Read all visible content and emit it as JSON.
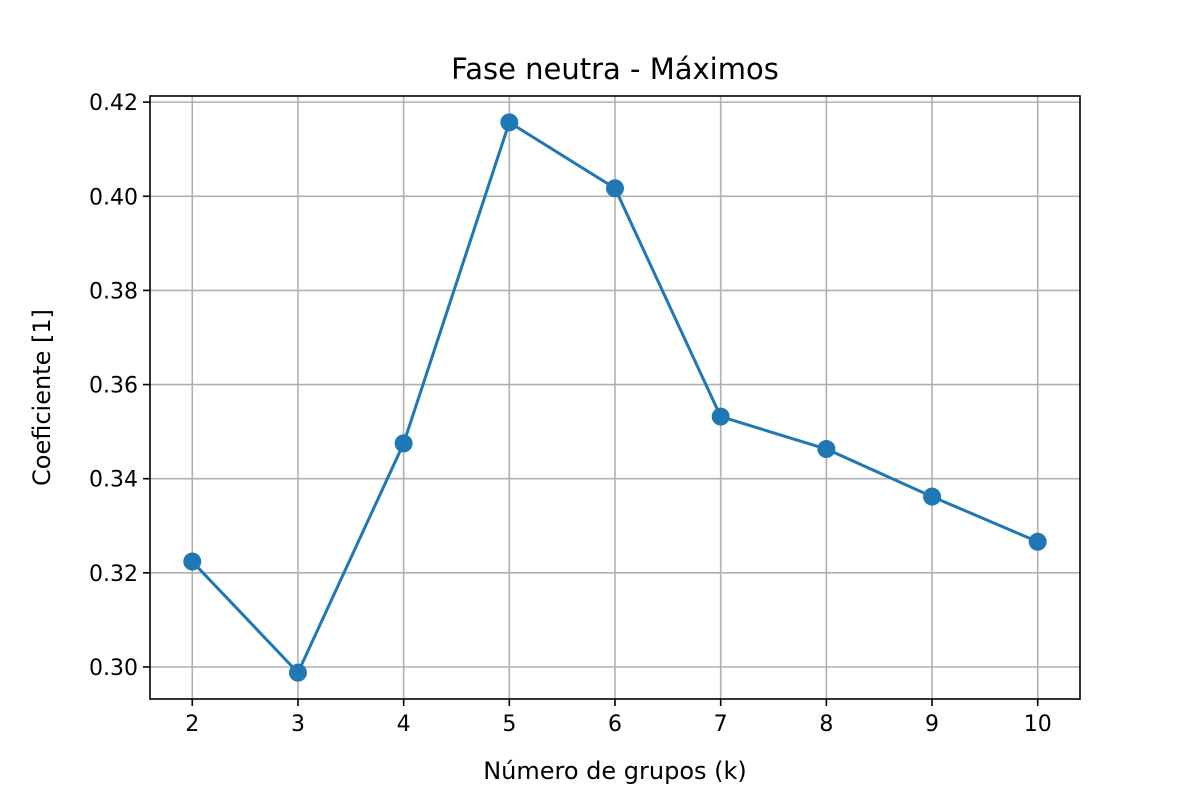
{
  "chart_data": {
    "type": "line",
    "title": "Fase neutra - Máximos",
    "xlabel": "Número de grupos (k)",
    "ylabel": "Coeficiente [1]",
    "x": [
      2,
      3,
      4,
      5,
      6,
      7,
      8,
      9,
      10
    ],
    "series": [
      {
        "values": [
          0.3224,
          0.2988,
          0.3475,
          0.4157,
          0.4017,
          0.3532,
          0.3463,
          0.3362,
          0.3266
        ],
        "color": "#1f77b4",
        "marker": "circle"
      }
    ],
    "xticks": [
      2,
      3,
      4,
      5,
      6,
      7,
      8,
      9,
      10
    ],
    "xtick_labels": [
      "2",
      "3",
      "4",
      "5",
      "6",
      "7",
      "8",
      "9",
      "10"
    ],
    "yticks": [
      0.3,
      0.32,
      0.34,
      0.36,
      0.38,
      0.4,
      0.42
    ],
    "ytick_labels": [
      "0.30",
      "0.32",
      "0.34",
      "0.36",
      "0.38",
      "0.40",
      "0.42"
    ],
    "xlim": [
      1.6,
      10.4
    ],
    "ylim": [
      0.2932,
      0.4213
    ],
    "grid": true,
    "legend": false
  }
}
